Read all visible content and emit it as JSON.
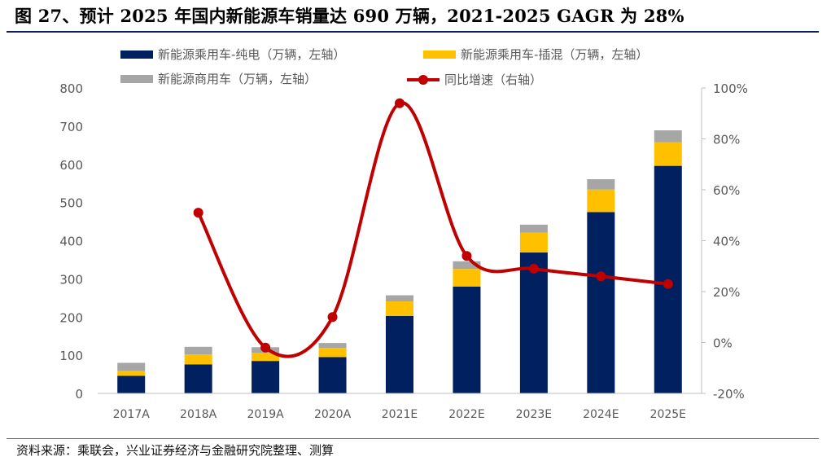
{
  "header": {
    "title": "图 27、预计 2025 年国内新能源车销量达 690 万辆，2021-2025 GAGR 为 28%"
  },
  "footer": {
    "source": "资料来源：乘联会，兴业证券经济与金融研究院整理、测算"
  },
  "colors": {
    "bev": "#002060",
    "phev": "#ffc000",
    "commercial": "#a6a6a6",
    "growth": "#c00000",
    "axis_text": "#595959",
    "title_rule": "#0b1f5c"
  },
  "chart_data": {
    "type": "bar",
    "stacked": true,
    "categories": [
      "2017A",
      "2018A",
      "2019A",
      "2020A",
      "2021E",
      "2022E",
      "2023E",
      "2024E",
      "2025E"
    ],
    "series": [
      {
        "name": "新能源乘用车-纯电（万辆，左轴）",
        "axis": "left",
        "kind": "bar",
        "values": [
          46,
          76,
          85,
          95,
          203,
          280,
          369,
          475,
          596
        ]
      },
      {
        "name": "新能源乘用车-插混（万辆，左轴）",
        "axis": "left",
        "kind": "bar",
        "values": [
          13,
          26,
          21,
          24,
          38,
          46,
          52,
          59,
          62
        ]
      },
      {
        "name": "新能源商用车（万辆，左轴）",
        "axis": "left",
        "kind": "bar",
        "values": [
          21,
          20,
          15,
          13,
          16,
          20,
          21,
          27,
          31
        ]
      },
      {
        "name": "同比增速（右轴）",
        "axis": "right",
        "kind": "line",
        "values": [
          null,
          51,
          -2,
          10,
          94,
          34,
          29,
          26,
          23
        ]
      }
    ],
    "left_axis": {
      "ylim": [
        0,
        800
      ],
      "ticks": [
        0,
        100,
        200,
        300,
        400,
        500,
        600,
        700,
        800
      ],
      "tick_labels": [
        "0",
        "100",
        "200",
        "300",
        "400",
        "500",
        "600",
        "700",
        "800"
      ]
    },
    "right_axis": {
      "ylim": [
        -20,
        100
      ],
      "ticks": [
        -20,
        0,
        20,
        40,
        60,
        80,
        100
      ],
      "tick_labels": [
        "-20%",
        "0%",
        "20%",
        "40%",
        "60%",
        "80%",
        "100%"
      ]
    },
    "legend_position": "top",
    "grid": false
  }
}
